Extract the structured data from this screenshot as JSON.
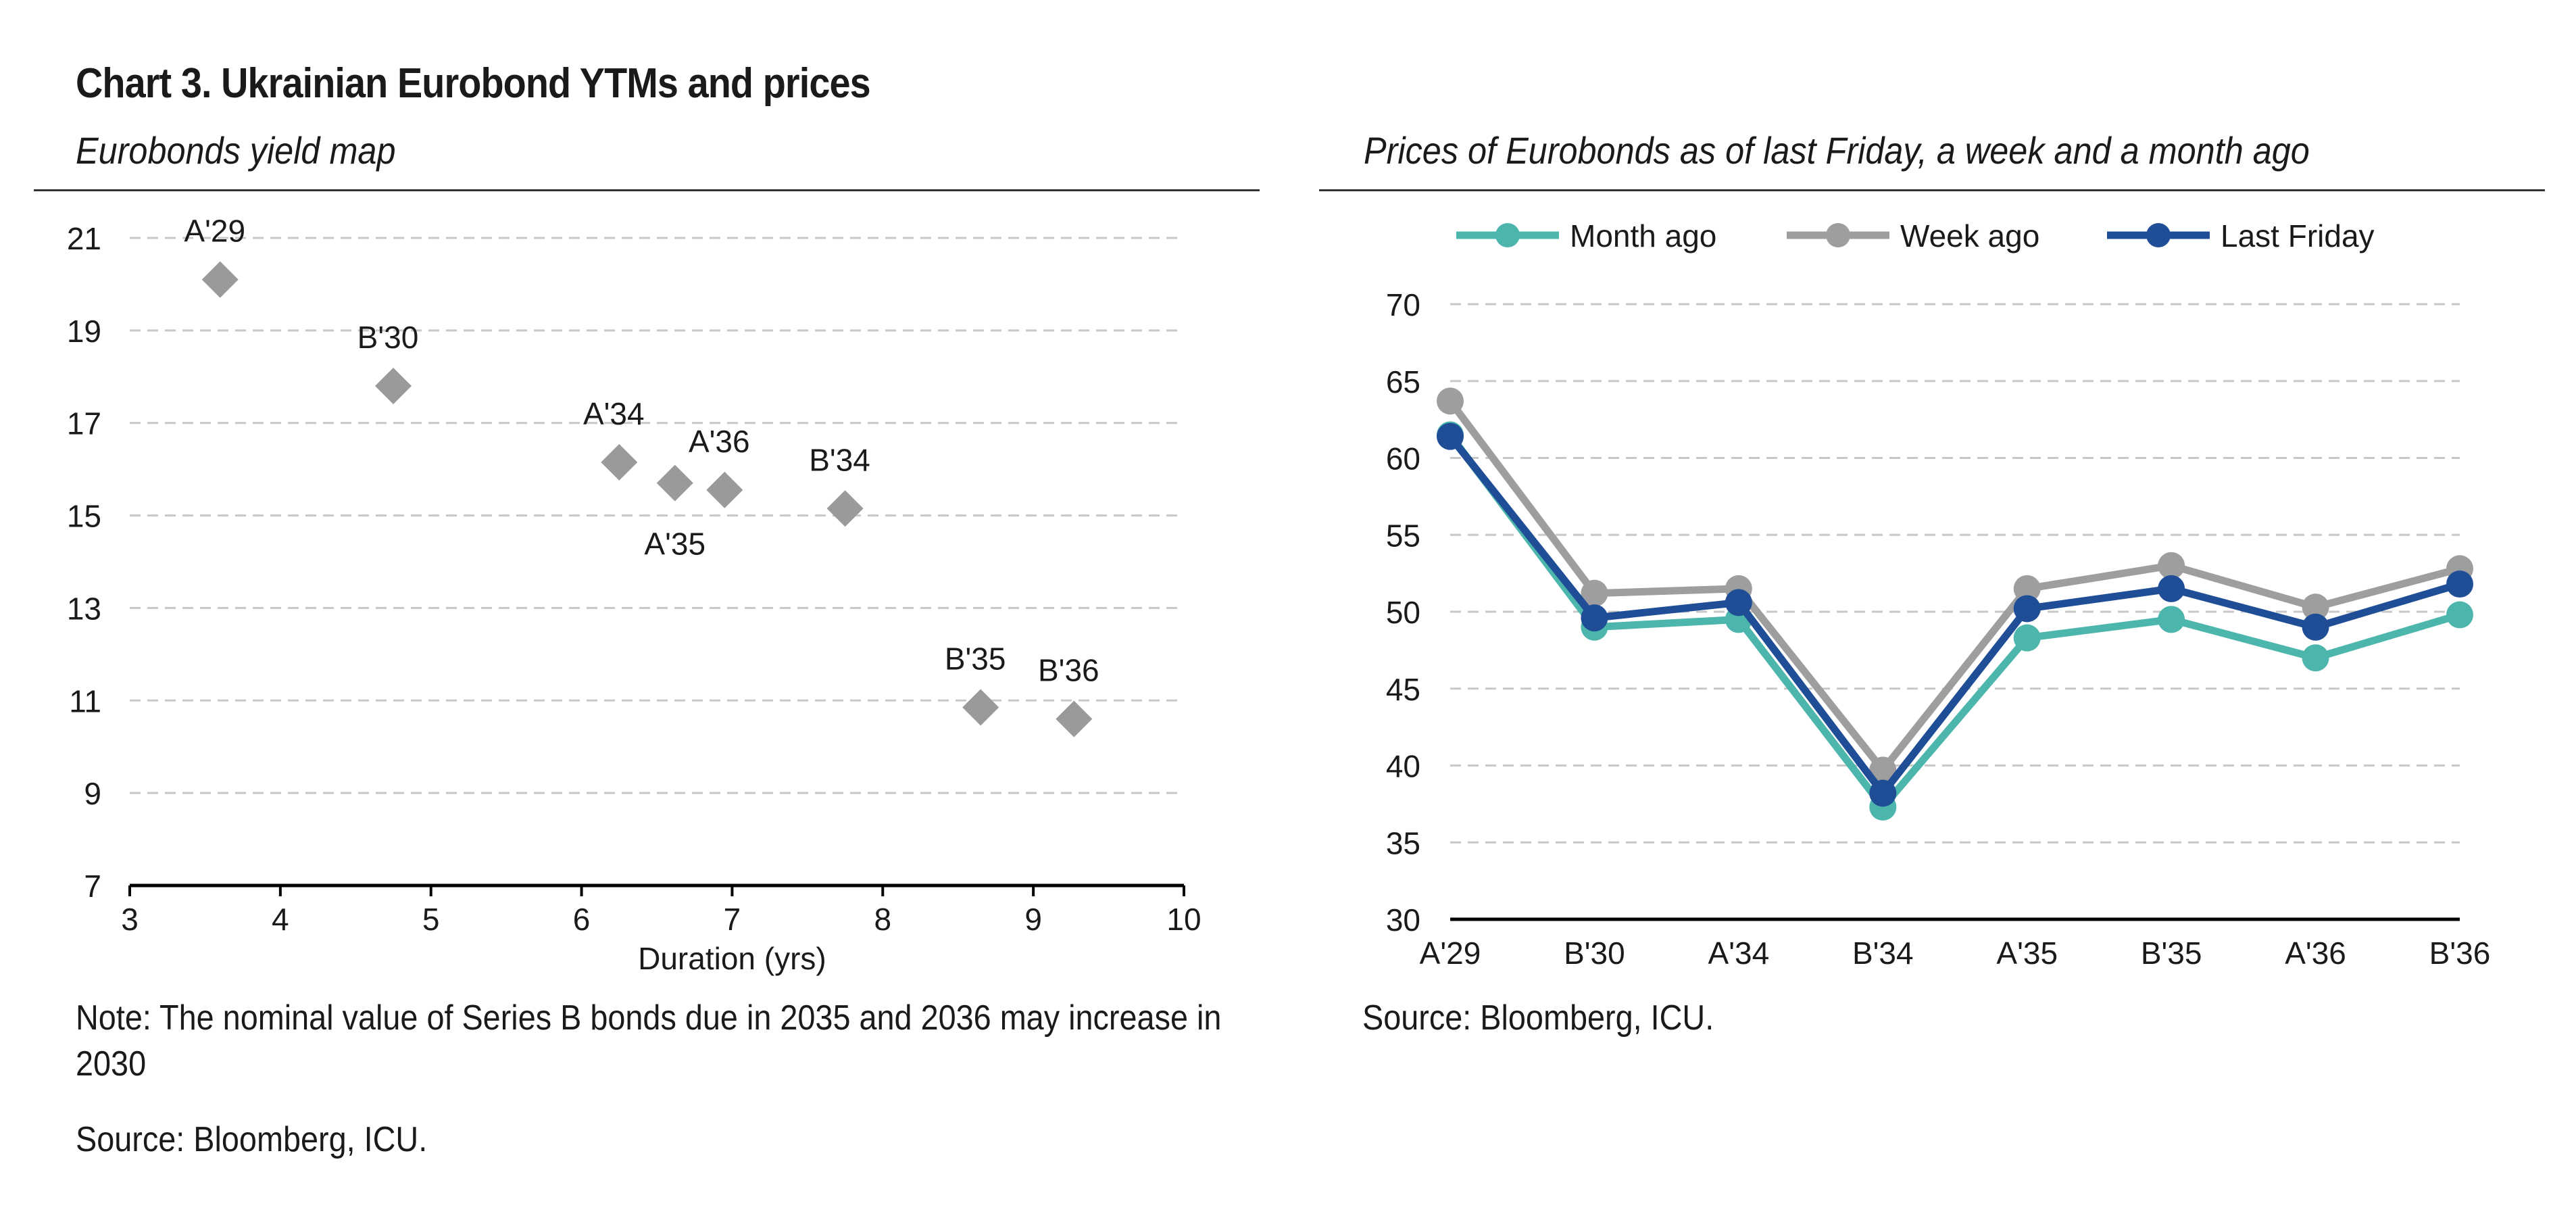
{
  "title": "Chart 3. Ukrainian Eurobond YTMs and prices",
  "left_panel": {
    "title": "Eurobonds yield map",
    "note": "Note: The nominal value of Series B bonds due in 2035 and 2036 may increase in 2030",
    "source": "Source: Bloomberg, ICU."
  },
  "right_panel": {
    "title": "Prices of Eurobonds as of last Friday, a week and a month ago",
    "source": "Source: Bloomberg, ICU."
  },
  "colors": {
    "scatter_marker": "#9a9a9a",
    "month_ago": "#4db6ac",
    "week_ago": "#9e9e9e",
    "last_friday": "#1f4e96",
    "grid": "#c8c8c8",
    "axis": "#000000"
  },
  "chart_data": [
    {
      "type": "scatter",
      "xlabel": "Duration (yrs)",
      "ylabel": "",
      "xlim": [
        3,
        10
      ],
      "ylim": [
        7,
        21
      ],
      "xticks": [
        3,
        4,
        5,
        6,
        7,
        8,
        9,
        10
      ],
      "yticks": [
        7,
        9,
        11,
        13,
        15,
        17,
        19,
        21
      ],
      "grid": "horizontal dashed",
      "points": [
        {
          "label": "A'29",
          "x": 3.6,
          "y": 20.1,
          "label_pos": "above"
        },
        {
          "label": "B'30",
          "x": 4.75,
          "y": 17.8,
          "label_pos": "above"
        },
        {
          "label": "A'34",
          "x": 6.25,
          "y": 16.15,
          "label_pos": "above"
        },
        {
          "label": "A'35",
          "x": 6.62,
          "y": 15.7,
          "label_pos": "below"
        },
        {
          "label": "A'36",
          "x": 6.95,
          "y": 15.55,
          "label_pos": "above"
        },
        {
          "label": "B'34",
          "x": 7.75,
          "y": 15.15,
          "label_pos": "above"
        },
        {
          "label": "B'35",
          "x": 8.65,
          "y": 10.85,
          "label_pos": "above"
        },
        {
          "label": "B'36",
          "x": 9.27,
          "y": 10.6,
          "label_pos": "above"
        }
      ]
    },
    {
      "type": "line",
      "categories": [
        "A'29",
        "B'30",
        "A'34",
        "B'34",
        "A'35",
        "B'35",
        "A'36",
        "B'36"
      ],
      "ylim": [
        30,
        70
      ],
      "yticks": [
        30,
        35,
        40,
        45,
        50,
        55,
        60,
        65,
        70
      ],
      "grid": "horizontal dashed",
      "legend_position": "top",
      "series": [
        {
          "name": "Month ago",
          "color_key": "month_ago",
          "values": [
            61.5,
            49.0,
            49.5,
            37.3,
            48.3,
            49.5,
            47.0,
            49.8
          ]
        },
        {
          "name": "Week ago",
          "color_key": "week_ago",
          "values": [
            63.7,
            51.2,
            51.5,
            39.7,
            51.5,
            53.0,
            50.3,
            52.8
          ]
        },
        {
          "name": "Last Friday",
          "color_key": "last_friday",
          "values": [
            61.4,
            49.6,
            50.6,
            38.2,
            50.2,
            51.5,
            49.0,
            51.8
          ]
        }
      ]
    }
  ]
}
